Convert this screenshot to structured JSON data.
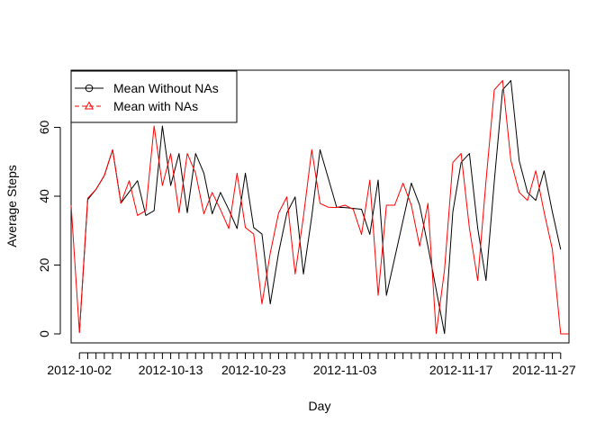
{
  "chart_data": {
    "type": "line",
    "title": "",
    "xlabel": "Day",
    "ylabel": "Average Steps",
    "x_tick_labels": [
      "2012-10-02",
      "2012-10-13",
      "2012-10-23",
      "2012-11-03",
      "2012-11-17",
      "2012-11-27"
    ],
    "x_tick_label_dates": [
      "2012-10-02",
      "2012-10-13",
      "2012-10-23",
      "2012-11-03",
      "2012-11-17",
      "2012-11-27"
    ],
    "y_ticks": [
      0,
      20,
      40,
      60
    ],
    "ylim": [
      0,
      73.6
    ],
    "legend_position": "top-left",
    "series": [
      {
        "name": "Mean Without NAs",
        "color": "#000000",
        "line_style": "solid",
        "marker": "circle",
        "x": [
          "2012-10-02",
          "2012-10-03",
          "2012-10-04",
          "2012-10-05",
          "2012-10-06",
          "2012-10-07",
          "2012-10-09",
          "2012-10-10",
          "2012-10-11",
          "2012-10-12",
          "2012-10-13",
          "2012-10-14",
          "2012-10-15",
          "2012-10-16",
          "2012-10-17",
          "2012-10-18",
          "2012-10-19",
          "2012-10-20",
          "2012-10-21",
          "2012-10-22",
          "2012-10-23",
          "2012-10-24",
          "2012-10-25",
          "2012-10-26",
          "2012-10-27",
          "2012-10-28",
          "2012-10-29",
          "2012-10-30",
          "2012-10-31",
          "2012-11-02",
          "2012-11-03",
          "2012-11-05",
          "2012-11-06",
          "2012-11-07",
          "2012-11-08",
          "2012-11-11",
          "2012-11-12",
          "2012-11-13",
          "2012-11-15",
          "2012-11-16",
          "2012-11-17",
          "2012-11-18",
          "2012-11-19",
          "2012-11-20",
          "2012-11-21",
          "2012-11-22",
          "2012-11-23",
          "2012-11-24",
          "2012-11-25",
          "2012-11-26",
          "2012-11-27",
          "2012-11-28",
          "2012-11-29"
        ],
        "values": [
          0.4,
          39,
          42,
          46,
          53.5,
          38,
          44.5,
          34.4,
          35.8,
          60.4,
          43.1,
          52.4,
          35.2,
          52.4,
          46.7,
          34.9,
          41.1,
          36.1,
          30.6,
          46.7,
          30.9,
          29,
          8.7,
          23.5,
          35.1,
          39.8,
          17.4,
          34.1,
          53.5,
          36.8,
          36.7,
          36.2,
          28.9,
          44.7,
          11.2,
          43.8,
          37.4,
          25.5,
          0.1,
          35.4,
          49.8,
          52.4,
          30.7,
          15.5,
          44.4,
          70.9,
          73.6,
          50.3,
          41.1,
          38.8,
          47.4,
          35.4,
          24.5
        ]
      },
      {
        "name": "Mean with NAs",
        "color": "#ff0000",
        "line_style": "dashed",
        "marker": "triangle",
        "x": [
          "2012-10-01",
          "2012-10-02",
          "2012-10-03",
          "2012-10-04",
          "2012-10-05",
          "2012-10-06",
          "2012-10-07",
          "2012-10-08",
          "2012-10-09",
          "2012-10-10",
          "2012-10-11",
          "2012-10-12",
          "2012-10-13",
          "2012-10-14",
          "2012-10-15",
          "2012-10-16",
          "2012-10-17",
          "2012-10-18",
          "2012-10-19",
          "2012-10-20",
          "2012-10-21",
          "2012-10-22",
          "2012-10-23",
          "2012-10-24",
          "2012-10-25",
          "2012-10-26",
          "2012-10-27",
          "2012-10-28",
          "2012-10-29",
          "2012-10-30",
          "2012-10-31",
          "2012-11-01",
          "2012-11-02",
          "2012-11-03",
          "2012-11-04",
          "2012-11-05",
          "2012-11-06",
          "2012-11-07",
          "2012-11-08",
          "2012-11-09",
          "2012-11-10",
          "2012-11-11",
          "2012-11-12",
          "2012-11-13",
          "2012-11-14",
          "2012-11-15",
          "2012-11-16",
          "2012-11-17",
          "2012-11-18",
          "2012-11-19",
          "2012-11-20",
          "2012-11-21",
          "2012-11-22",
          "2012-11-23",
          "2012-11-24",
          "2012-11-25",
          "2012-11-26",
          "2012-11-27",
          "2012-11-28",
          "2012-11-29",
          "2012-11-30"
        ],
        "values": [
          37.4,
          0.4,
          39.4,
          42,
          46,
          53.5,
          38,
          44.5,
          34.4,
          35.8,
          60.4,
          43.1,
          52.4,
          35.2,
          52.4,
          46.7,
          34.9,
          41.1,
          36.1,
          30.6,
          46.7,
          30.9,
          29,
          8.7,
          23.5,
          35.1,
          39.8,
          17.4,
          34.1,
          53.5,
          37.9,
          36.8,
          36.7,
          37.4,
          36.2,
          28.9,
          44.7,
          11.2,
          37.4,
          37.4,
          43.8,
          37.4,
          25.5,
          37.9,
          0.1,
          18.6,
          49.8,
          52.4,
          30.7,
          15.5,
          44.4,
          70.9,
          73.6,
          50.3,
          41.1,
          38.8,
          47.4,
          35.4,
          24.5,
          0,
          0
        ]
      }
    ]
  }
}
